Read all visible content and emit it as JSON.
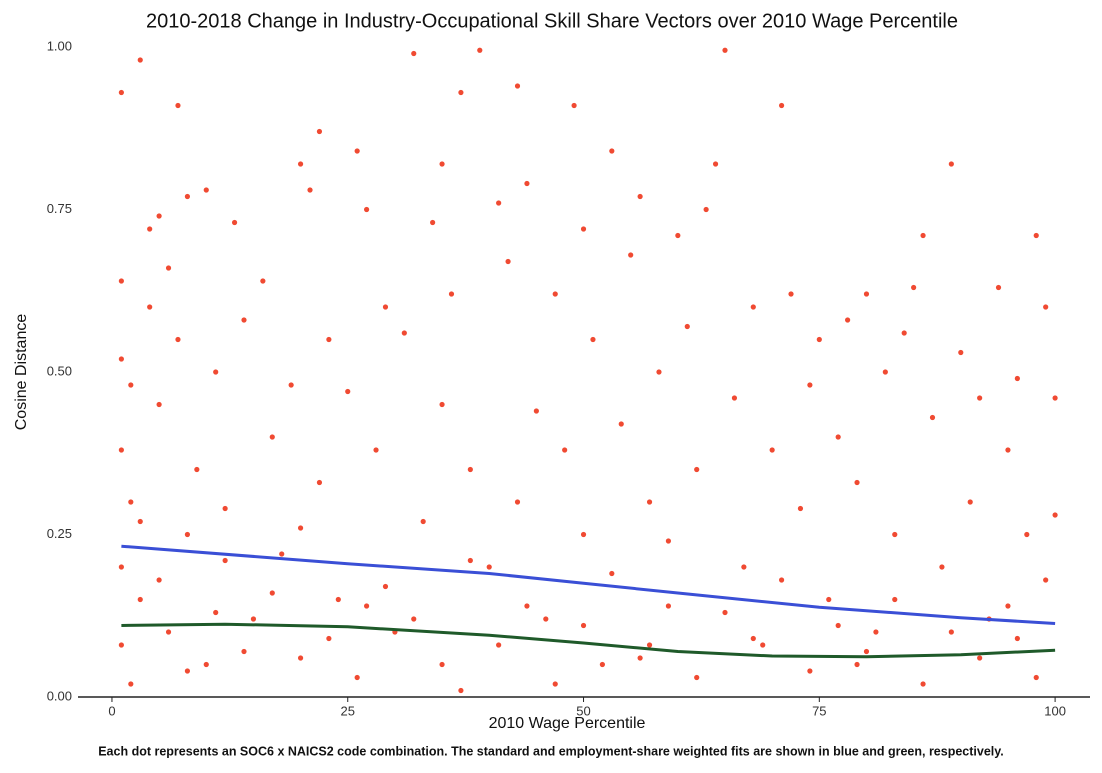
{
  "chart_data": {
    "type": "scatter",
    "title": "2010-2018 Change in Industry-Occupational Skill Share Vectors over 2010 Wage Percentile",
    "x_label": "2010 Wage Percentile",
    "y_label": "Cosine Distance",
    "caption": "Each dot represents an SOC6 x NAICS2 code combination. The standard and employment-share weighted fits are shown in blue and green, respectively.",
    "color": "#f04a32",
    "x": [
      1,
      1,
      1,
      1,
      1,
      1,
      2,
      2,
      3,
      3,
      4,
      4,
      5,
      5,
      6,
      6,
      7,
      7,
      8,
      8,
      9,
      10,
      10,
      11,
      12,
      13,
      14,
      15,
      16,
      17,
      18,
      19,
      20,
      20,
      21,
      22,
      22,
      23,
      24,
      25,
      26,
      27,
      28,
      29,
      30,
      31,
      32,
      33,
      34,
      35,
      35,
      36,
      37,
      38,
      39,
      40,
      41,
      42,
      43,
      43,
      44,
      45,
      46,
      47,
      48,
      49,
      50,
      50,
      51,
      52,
      53,
      54,
      55,
      56,
      57,
      58,
      59,
      60,
      61,
      62,
      63,
      64,
      65,
      66,
      67,
      68,
      69,
      70,
      71,
      72,
      73,
      74,
      75,
      76,
      77,
      78,
      79,
      80,
      81,
      82,
      83,
      84,
      85,
      86,
      87,
      88,
      89,
      90,
      91,
      92,
      93,
      94,
      95,
      96,
      97,
      98,
      99,
      99,
      100,
      100,
      2,
      5,
      8,
      11,
      14,
      17,
      20,
      23,
      26,
      29,
      32,
      35,
      38,
      41,
      44,
      47,
      50,
      53,
      56,
      59,
      62,
      65,
      68,
      71,
      74,
      77,
      80,
      83,
      86,
      89,
      92,
      95,
      98,
      3,
      12,
      27,
      37,
      57,
      79,
      96
    ],
    "y": [
      0.93,
      0.64,
      0.52,
      0.38,
      0.2,
      0.08,
      0.48,
      0.3,
      0.98,
      0.15,
      0.72,
      0.6,
      0.74,
      0.45,
      0.66,
      0.1,
      0.91,
      0.55,
      0.77,
      0.25,
      0.35,
      0.78,
      0.05,
      0.5,
      0.29,
      0.73,
      0.58,
      0.12,
      0.64,
      0.4,
      0.22,
      0.48,
      0.82,
      0.06,
      0.78,
      0.87,
      0.33,
      0.55,
      0.15,
      0.47,
      0.84,
      0.75,
      0.38,
      0.6,
      0.1,
      0.56,
      0.99,
      0.27,
      0.73,
      0.82,
      0.45,
      0.62,
      0.93,
      0.35,
      0.995,
      0.2,
      0.76,
      0.67,
      0.94,
      0.3,
      0.79,
      0.44,
      0.12,
      0.62,
      0.38,
      0.91,
      0.72,
      0.25,
      0.55,
      0.05,
      0.84,
      0.42,
      0.68,
      0.77,
      0.3,
      0.5,
      0.14,
      0.71,
      0.57,
      0.35,
      0.75,
      0.82,
      0.995,
      0.46,
      0.2,
      0.6,
      0.08,
      0.38,
      0.91,
      0.62,
      0.29,
      0.48,
      0.55,
      0.15,
      0.4,
      0.58,
      0.33,
      0.62,
      0.1,
      0.5,
      0.25,
      0.56,
      0.63,
      0.71,
      0.43,
      0.2,
      0.82,
      0.53,
      0.3,
      0.46,
      0.12,
      0.63,
      0.38,
      0.49,
      0.25,
      0.71,
      0.6,
      0.18,
      0.46,
      0.28,
      0.02,
      0.18,
      0.04,
      0.13,
      0.07,
      0.16,
      0.26,
      0.09,
      0.03,
      0.17,
      0.12,
      0.05,
      0.21,
      0.08,
      0.14,
      0.02,
      0.11,
      0.19,
      0.06,
      0.24,
      0.03,
      0.13,
      0.09,
      0.18,
      0.04,
      0.11,
      0.07,
      0.15,
      0.02,
      0.1,
      0.06,
      0.14,
      0.03,
      0.27,
      0.21,
      0.14,
      0.01,
      0.08,
      0.05,
      0.09
    ],
    "fits": [
      {
        "color": "#3a4fd6",
        "x": [
          1,
          25,
          40,
          50,
          60,
          75,
          90,
          100
        ],
        "y": [
          0.232,
          0.205,
          0.19,
          0.175,
          0.16,
          0.138,
          0.122,
          0.113
        ]
      },
      {
        "color": "#1f5a2a",
        "x": [
          1,
          12,
          25,
          40,
          50,
          60,
          70,
          80,
          90,
          100
        ],
        "y": [
          0.11,
          0.112,
          0.108,
          0.095,
          0.083,
          0.07,
          0.063,
          0.062,
          0.065,
          0.072
        ]
      }
    ],
    "xlim": [
      -3.6,
      103.7
    ],
    "ylim": [
      0,
      1
    ],
    "xticks": [
      0,
      25,
      50,
      75,
      100
    ],
    "yticks": [
      {
        "value": 0,
        "label": "0.00"
      },
      {
        "value": 0.25,
        "label": "0.25"
      },
      {
        "value": 0.5,
        "label": "0.50"
      },
      {
        "value": 0.75,
        "label": "0.75"
      },
      {
        "value": 1,
        "label": "1.00"
      }
    ]
  }
}
